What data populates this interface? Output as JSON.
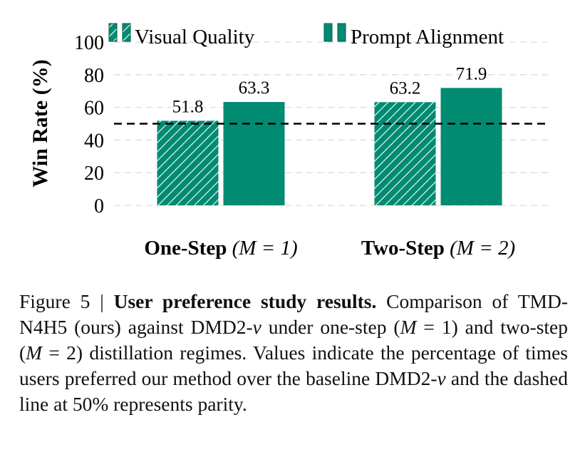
{
  "chart_data": {
    "type": "bar",
    "categories": [
      "One-Step (M = 1)",
      "Two-Step (M = 2)"
    ],
    "category_parts": [
      {
        "bold": "One-Step",
        "math": "(M = 1)"
      },
      {
        "bold": "Two-Step",
        "math": "(M = 2)"
      }
    ],
    "series": [
      {
        "name": "Visual Quality",
        "values": [
          51.8,
          63.2
        ],
        "pattern": "hatched"
      },
      {
        "name": "Prompt Alignment",
        "values": [
          63.3,
          71.9
        ],
        "pattern": "solid"
      }
    ],
    "value_labels": [
      [
        "51.8",
        "63.2"
      ],
      [
        "63.3",
        "71.9"
      ]
    ],
    "ylabel": "Win Rate (%)",
    "xlabel": "",
    "ylim": [
      0,
      100
    ],
    "yticks": [
      "0",
      "20",
      "40",
      "60",
      "80",
      "100"
    ],
    "reference_line": 50,
    "grid": true,
    "legend_placement": "top",
    "color": "#008b72"
  },
  "caption": {
    "prefix": "Figure 5 | ",
    "title": "User preference study results.",
    "body1": " Comparison of TMD-N4H5 (ours) against DMD2-",
    "v1": "v",
    "body2": " under one-step (",
    "m1": "M",
    "body3": " = 1) and two-step (",
    "m2": "M",
    "body4": " = 2) distillation regimes. Values indicate the percentage of times users preferred our method over the baseline DMD2-",
    "v2": "v",
    "body5": " and the dashed line at 50% represents parity."
  }
}
